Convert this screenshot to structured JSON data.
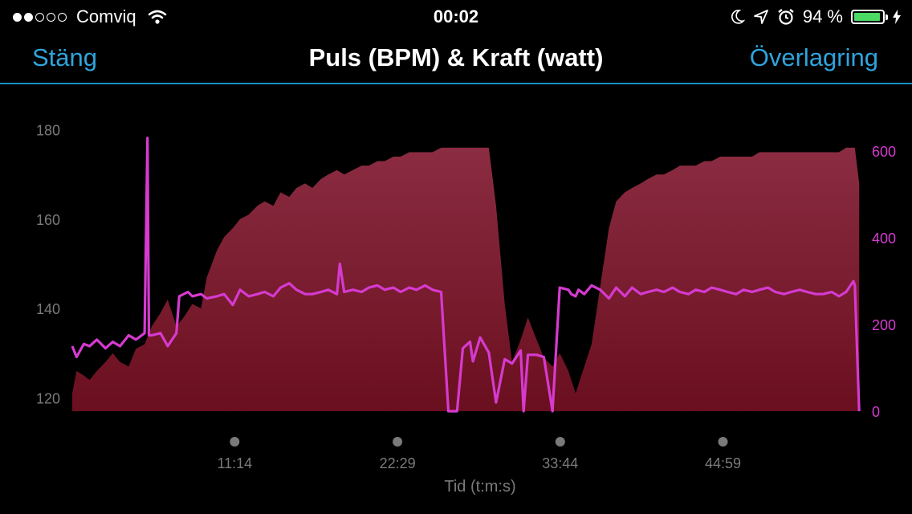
{
  "status_bar": {
    "carrier": "Comviq",
    "signal_bars_filled": 2,
    "signal_bars_total": 5,
    "time": "00:02",
    "battery_percent": "94 %",
    "battery_level": 0.94,
    "icons": [
      "wifi-icon",
      "moon-icon",
      "location-arrow-icon",
      "alarm-icon",
      "battery-icon",
      "charging-bolt-icon"
    ]
  },
  "nav": {
    "close_label": "Stäng",
    "title": "Puls (BPM) & Kraft (watt)",
    "overlay_label": "Överlagring"
  },
  "colors": {
    "accent": "#2fa4dd",
    "heart_rate_fill_top": "#8b2c42",
    "heart_rate_fill_bottom": "#6a0f1f",
    "power_line": "#d63ad0",
    "axis_text": "#7a7a7a",
    "battery": "#4cd964"
  },
  "chart_data": {
    "type": "area",
    "xlabel": "Tid (t:m:s)",
    "x_tick_labels": [
      "11:14",
      "22:29",
      "33:44",
      "44:59"
    ],
    "x_ticks_minutes": [
      11.23,
      22.48,
      33.73,
      44.98
    ],
    "xlim_minutes": [
      0,
      54.5
    ],
    "y_left": {
      "range": [
        117,
        183
      ],
      "ticks": [
        120,
        140,
        160,
        180
      ],
      "tick_labels": [
        "120",
        "140",
        "160",
        "180"
      ]
    },
    "y_right": {
      "range": [
        0,
        600
      ],
      "ticks": [
        0,
        200,
        400,
        600
      ],
      "tick_labels": [
        "0",
        "200",
        "400",
        "600"
      ]
    },
    "grid": false,
    "series": [
      {
        "axis": "left",
        "style": "area",
        "x": [
          0,
          0.3,
          0.8,
          1.2,
          1.7,
          2.3,
          2.8,
          3.3,
          3.9,
          4.4,
          5.0,
          5.5,
          6.1,
          6.6,
          7.2,
          7.7,
          8.3,
          8.9,
          9.3,
          10.0,
          10.5,
          11.1,
          11.6,
          12.2,
          12.8,
          13.3,
          13.9,
          14.4,
          15.0,
          15.5,
          16.1,
          16.6,
          17.2,
          17.7,
          18.3,
          18.8,
          19.4,
          20.0,
          20.5,
          21.1,
          21.6,
          22.2,
          22.7,
          23.3,
          23.8,
          24.4,
          24.9,
          25.5,
          26.0,
          26.6,
          27.0,
          27.7,
          28.2,
          28.8,
          29.3,
          29.9,
          30.4,
          31.0,
          31.5,
          32.1,
          32.6,
          33.2,
          33.7,
          34.3,
          34.8,
          35.4,
          35.9,
          36.5,
          37.1,
          37.6,
          38.2,
          38.7,
          39.3,
          39.8,
          40.4,
          40.9,
          41.5,
          42.0,
          42.6,
          43.1,
          43.7,
          44.2,
          44.8,
          45.3,
          45.9,
          46.4,
          47.0,
          47.5,
          48.1,
          48.6,
          49.2,
          49.7,
          50.3,
          50.8,
          51.4,
          51.9,
          52.5,
          53.0,
          53.5,
          54.1,
          54.4
        ],
        "values": [
          121,
          126,
          125,
          124,
          126,
          128,
          130,
          128,
          127,
          131,
          132,
          136,
          139,
          142,
          136,
          138,
          141,
          140,
          147,
          153,
          156,
          158,
          160,
          161,
          163,
          164,
          163,
          166,
          165,
          167,
          168,
          167,
          169,
          170,
          171,
          170,
          171,
          172,
          172,
          173,
          173,
          174,
          174,
          175,
          175,
          175,
          175,
          176,
          176,
          176,
          176,
          176,
          176,
          176,
          163,
          141,
          128,
          133,
          138,
          133,
          129,
          127,
          130,
          126,
          121,
          127,
          132,
          145,
          158,
          164,
          166,
          167,
          168,
          169,
          170,
          170,
          171,
          172,
          172,
          172,
          173,
          173,
          174,
          174,
          174,
          174,
          174,
          175,
          175,
          175,
          175,
          175,
          175,
          175,
          175,
          175,
          175,
          175,
          176,
          176,
          168
        ]
      },
      {
        "axis": "right",
        "style": "line",
        "x": [
          0,
          0.3,
          0.8,
          1.2,
          1.7,
          2.3,
          2.8,
          3.3,
          3.9,
          4.4,
          5.0,
          5.2,
          5.3,
          5.5,
          6.1,
          6.6,
          7.2,
          7.4,
          8.0,
          8.3,
          8.9,
          9.3,
          10.0,
          10.5,
          11.1,
          11.6,
          12.2,
          12.8,
          13.3,
          13.9,
          14.4,
          15.0,
          15.5,
          16.1,
          16.6,
          17.2,
          17.7,
          18.3,
          18.5,
          18.8,
          19.4,
          20.0,
          20.5,
          21.1,
          21.6,
          22.2,
          22.7,
          23.3,
          23.8,
          24.4,
          24.9,
          25.5,
          26.0,
          26.6,
          27.0,
          27.5,
          27.7,
          28.2,
          28.8,
          29.3,
          29.9,
          30.4,
          31.0,
          31.2,
          31.5,
          32.1,
          32.6,
          33.2,
          33.7,
          34.3,
          34.5,
          34.8,
          35.0,
          35.4,
          35.9,
          36.5,
          37.1,
          37.6,
          38.2,
          38.7,
          39.3,
          39.8,
          40.4,
          40.9,
          41.5,
          42.0,
          42.6,
          43.1,
          43.7,
          44.2,
          44.8,
          45.3,
          45.9,
          46.4,
          47.0,
          47.5,
          48.1,
          48.6,
          49.2,
          49.7,
          50.3,
          50.8,
          51.4,
          51.9,
          52.5,
          53.0,
          53.5,
          54.0,
          54.1,
          54.4
        ],
        "values": [
          150,
          125,
          155,
          150,
          165,
          145,
          160,
          150,
          175,
          165,
          180,
          630,
          175,
          175,
          180,
          150,
          180,
          265,
          275,
          265,
          270,
          260,
          265,
          270,
          245,
          280,
          265,
          270,
          275,
          265,
          285,
          295,
          280,
          270,
          270,
          275,
          280,
          270,
          340,
          275,
          280,
          275,
          285,
          290,
          280,
          285,
          275,
          285,
          280,
          290,
          280,
          275,
          0,
          0,
          145,
          160,
          115,
          170,
          135,
          20,
          120,
          110,
          140,
          0,
          130,
          130,
          125,
          0,
          285,
          280,
          270,
          265,
          280,
          270,
          290,
          280,
          260,
          285,
          265,
          285,
          270,
          275,
          280,
          275,
          285,
          275,
          270,
          280,
          275,
          285,
          280,
          275,
          270,
          280,
          275,
          280,
          285,
          275,
          270,
          275,
          280,
          275,
          270,
          270,
          275,
          265,
          275,
          300,
          290,
          0
        ]
      }
    ]
  }
}
